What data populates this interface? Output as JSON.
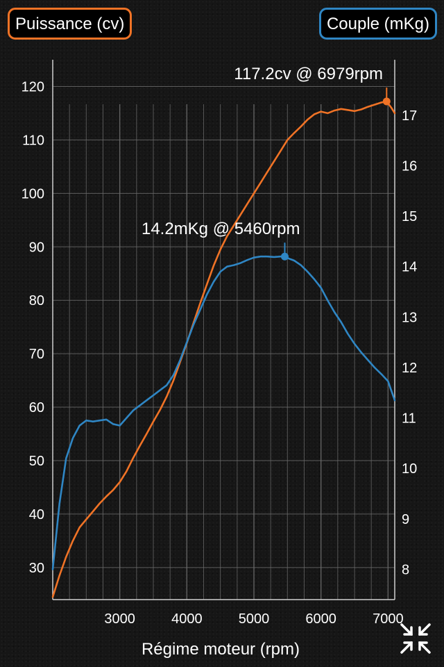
{
  "legend": {
    "power_label": "Puissance (cv)",
    "torque_label": "Couple (mKg)"
  },
  "colors": {
    "power": "#f07326",
    "torque": "#2f86c4",
    "grid": "#6a6a6a",
    "axis": "#cfcfcf"
  },
  "controls": {
    "collapse_icon": "collapse-arrows-icon"
  },
  "chart_data": {
    "type": "line",
    "xlabel": "Régime moteur (rpm)",
    "xlim": [
      2000,
      7100
    ],
    "x_ticks": [
      3000,
      4000,
      5000,
      6000,
      7000
    ],
    "y_left": {
      "label": "",
      "lim": [
        24,
        125
      ],
      "ticks": [
        30,
        40,
        50,
        60,
        70,
        80,
        90,
        100,
        110,
        120
      ]
    },
    "y_right": {
      "label": "",
      "lim": [
        7.4,
        18.1
      ],
      "ticks": [
        8,
        9,
        10,
        11,
        12,
        13,
        14,
        15,
        16,
        17
      ]
    },
    "grid": true,
    "series": [
      {
        "name": "Puissance (cv)",
        "axis": "left",
        "x": [
          2000,
          2100,
          2200,
          2300,
          2400,
          2500,
          2600,
          2700,
          2800,
          2900,
          3000,
          3100,
          3200,
          3300,
          3400,
          3500,
          3600,
          3700,
          3800,
          3900,
          4000,
          4100,
          4200,
          4300,
          4400,
          4500,
          4600,
          4700,
          4800,
          4900,
          5000,
          5100,
          5200,
          5300,
          5400,
          5500,
          5600,
          5700,
          5800,
          5900,
          6000,
          6100,
          6200,
          6300,
          6400,
          6500,
          6600,
          6700,
          6800,
          6900,
          6979,
          7050,
          7100
        ],
        "values": [
          24.5,
          28.5,
          32.0,
          35.0,
          37.5,
          39.0,
          40.5,
          42.0,
          43.3,
          44.5,
          46.0,
          48.0,
          50.5,
          52.8,
          55.0,
          57.3,
          59.5,
          62.0,
          65.0,
          68.5,
          72.0,
          75.8,
          79.5,
          83.0,
          86.5,
          89.5,
          92.0,
          94.0,
          96.0,
          98.0,
          100.0,
          102.0,
          104.0,
          106.0,
          108.0,
          110.0,
          111.3,
          112.5,
          113.8,
          114.8,
          115.3,
          115.0,
          115.5,
          115.8,
          115.6,
          115.4,
          115.7,
          116.2,
          116.6,
          117.0,
          117.2,
          116.0,
          115.0
        ]
      },
      {
        "name": "Couple (mKg)",
        "axis": "right",
        "x": [
          2000,
          2100,
          2200,
          2300,
          2400,
          2500,
          2600,
          2700,
          2800,
          2900,
          3000,
          3100,
          3200,
          3300,
          3400,
          3500,
          3600,
          3700,
          3800,
          3900,
          4000,
          4100,
          4200,
          4300,
          4400,
          4500,
          4600,
          4700,
          4800,
          4900,
          5000,
          5100,
          5200,
          5300,
          5400,
          5460,
          5500,
          5600,
          5700,
          5800,
          5900,
          6000,
          6100,
          6200,
          6300,
          6400,
          6500,
          6600,
          6700,
          6800,
          6900,
          7000,
          7100
        ],
        "values": [
          8.0,
          9.3,
          10.2,
          10.6,
          10.85,
          10.95,
          10.93,
          10.95,
          10.97,
          10.88,
          10.85,
          11.0,
          11.15,
          11.25,
          11.35,
          11.45,
          11.55,
          11.65,
          11.85,
          12.15,
          12.5,
          12.85,
          13.15,
          13.45,
          13.7,
          13.9,
          14.0,
          14.03,
          14.07,
          14.13,
          14.18,
          14.2,
          14.2,
          14.19,
          14.2,
          14.2,
          14.17,
          14.12,
          14.03,
          13.9,
          13.75,
          13.58,
          13.33,
          13.1,
          12.9,
          12.67,
          12.47,
          12.3,
          12.15,
          12.0,
          11.87,
          11.73,
          11.35
        ]
      }
    ],
    "annotations": [
      {
        "series": 0,
        "x": 6979,
        "y": 117.2,
        "label": "117.2cv @ 6979rpm"
      },
      {
        "series": 1,
        "x": 5460,
        "y": 14.2,
        "label": "14.2mKg @ 5460rpm"
      }
    ]
  }
}
